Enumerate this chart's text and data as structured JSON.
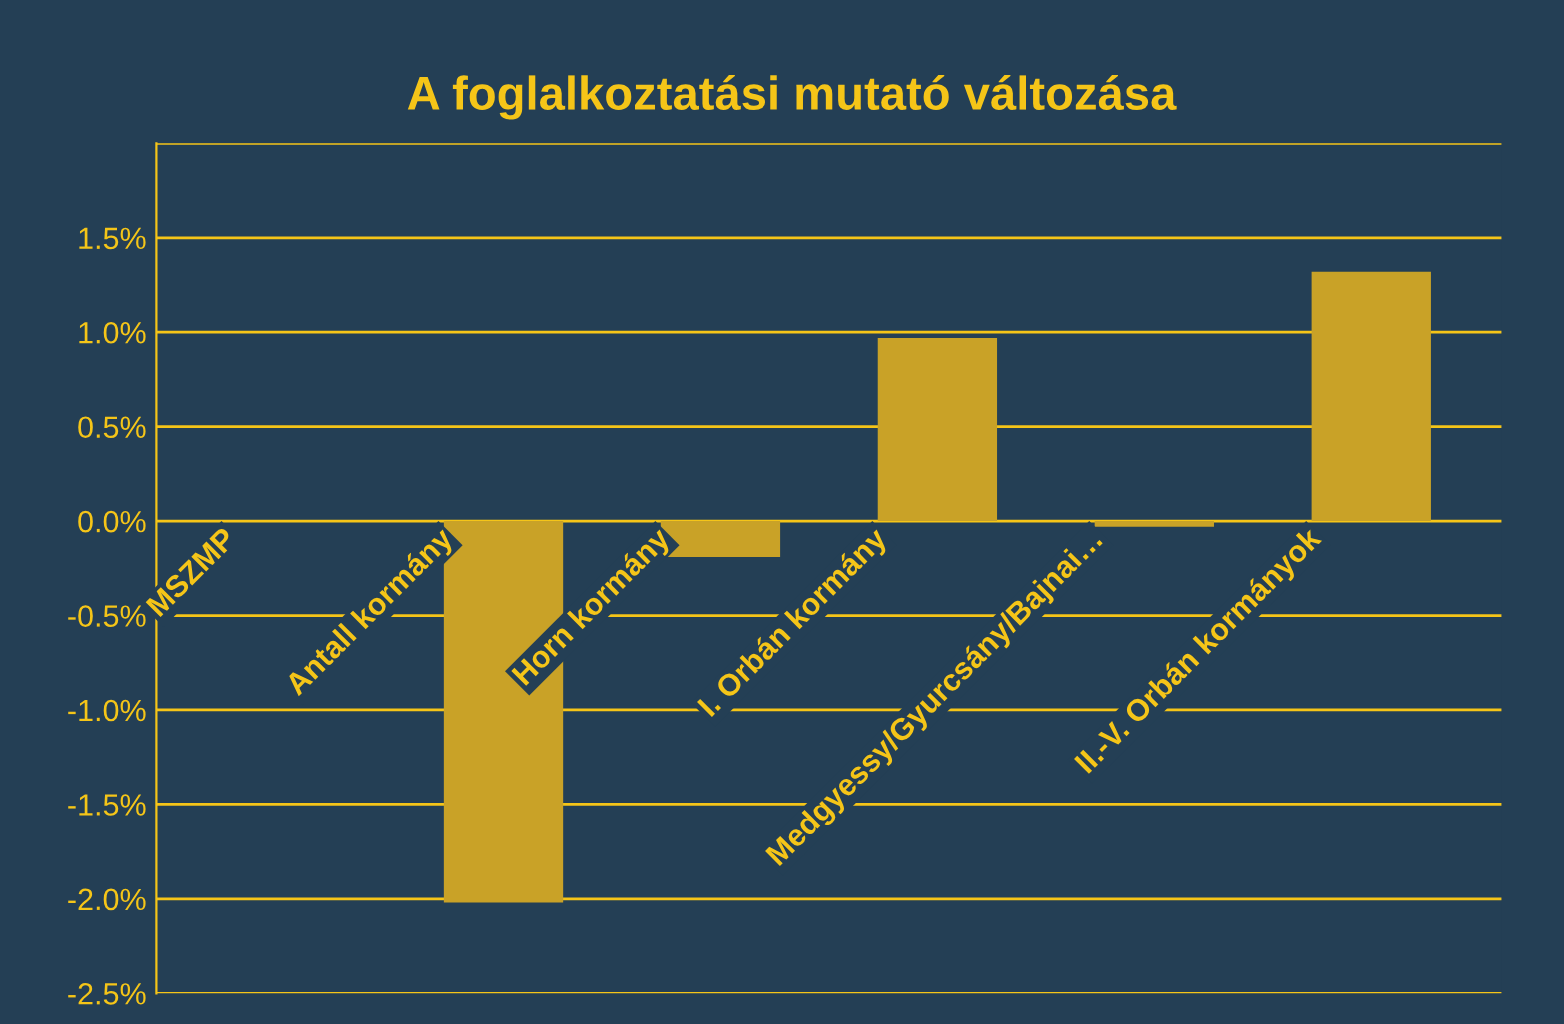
{
  "chart_data": {
    "type": "bar",
    "title": "A foglalkoztatási mutató változása",
    "categories": [
      "MSZMP",
      "Antall kormány",
      "Horn kormány",
      "I. Orbán kormány",
      "Medgyessy/Gyurcsány/Bajnai…",
      "II.-V. Orbán kormányok"
    ],
    "values": [
      0.0,
      -2.02,
      -0.19,
      0.97,
      -0.03,
      1.32
    ],
    "color": "#c9a227",
    "ylim": [
      -2.5,
      2.0
    ],
    "yticks": [
      {
        "value": -2.5,
        "label": "-2.5%"
      },
      {
        "value": -2.0,
        "label": "-2.0%"
      },
      {
        "value": -1.5,
        "label": "-1.5%"
      },
      {
        "value": -1.0,
        "label": "-1.0%"
      },
      {
        "value": -0.5,
        "label": "-0.5%"
      },
      {
        "value": 0.0,
        "label": "0.0%"
      },
      {
        "value": 0.5,
        "label": "0.5%"
      },
      {
        "value": 1.0,
        "label": "1.0%"
      },
      {
        "value": 1.5,
        "label": "1.5%"
      },
      {
        "value": 2.0,
        "label": null
      }
    ],
    "grid": "y"
  }
}
